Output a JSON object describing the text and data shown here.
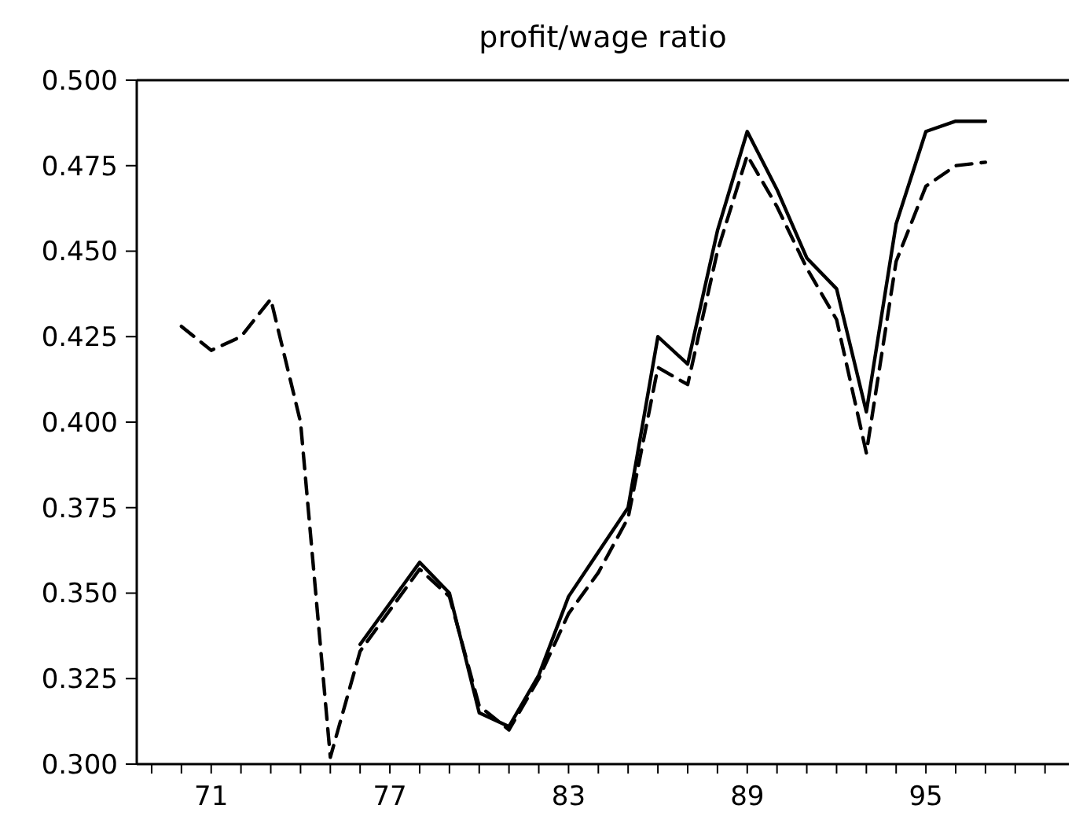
{
  "chart_data": {
    "type": "line",
    "title": "profit/wage ratio",
    "xlim": [
      68.5,
      99.8
    ],
    "xticks": [
      {
        "value": 69,
        "label": null
      },
      {
        "value": 70,
        "label": null
      },
      71,
      {
        "value": 72,
        "label": null
      },
      {
        "value": 73,
        "label": null
      },
      {
        "value": 74,
        "label": null
      },
      {
        "value": 75,
        "label": null
      },
      {
        "value": 76,
        "label": null
      },
      77,
      {
        "value": 78,
        "label": null
      },
      {
        "value": 79,
        "label": null
      },
      {
        "value": 80,
        "label": null
      },
      {
        "value": 81,
        "label": null
      },
      {
        "value": 82,
        "label": null
      },
      83,
      {
        "value": 84,
        "label": null
      },
      {
        "value": 85,
        "label": null
      },
      {
        "value": 86,
        "label": null
      },
      {
        "value": 87,
        "label": null
      },
      {
        "value": 88,
        "label": null
      },
      89,
      {
        "value": 90,
        "label": null
      },
      {
        "value": 91,
        "label": null
      },
      {
        "value": 92,
        "label": null
      },
      {
        "value": 93,
        "label": null
      },
      {
        "value": 94,
        "label": null
      },
      95,
      {
        "value": 96,
        "label": null
      },
      {
        "value": 97,
        "label": null
      },
      {
        "value": 98,
        "label": null
      },
      {
        "value": 99,
        "label": null
      }
    ],
    "ylim": [
      0.3,
      0.5
    ],
    "yticks": [
      {
        "value": 0.3,
        "label": "0.300"
      },
      {
        "value": 0.325,
        "label": "0.325"
      },
      {
        "value": 0.35,
        "label": "0.350"
      },
      {
        "value": 0.375,
        "label": "0.375"
      },
      {
        "value": 0.4,
        "label": "0.400"
      },
      {
        "value": 0.425,
        "label": "0.425"
      },
      {
        "value": 0.45,
        "label": "0.450"
      },
      {
        "value": 0.475,
        "label": "0.475"
      },
      {
        "value": 0.5,
        "label": "0.500"
      }
    ],
    "x": [
      70,
      71,
      72,
      73,
      74,
      75,
      76,
      77,
      78,
      79,
      80,
      81,
      82,
      83,
      84,
      85,
      86,
      87,
      88,
      89,
      90,
      91,
      92,
      93,
      94,
      95,
      96,
      97
    ],
    "grid": false,
    "marker": "none",
    "series": [
      {
        "color": "#000000",
        "line_style": "solid",
        "values": [
          null,
          null,
          null,
          null,
          null,
          null,
          0.335,
          0.347,
          0.359,
          0.35,
          0.315,
          0.311,
          0.326,
          0.349,
          0.362,
          0.375,
          0.425,
          0.417,
          0.456,
          0.485,
          0.468,
          0.448,
          0.439,
          0.403,
          0.458,
          0.485,
          0.488,
          0.488
        ]
      },
      {
        "color": "#000000",
        "line_style": "dashed",
        "values": [
          0.428,
          0.421,
          0.425,
          0.436,
          0.4,
          0.302,
          0.333,
          0.345,
          0.357,
          0.349,
          0.317,
          0.31,
          0.325,
          0.344,
          0.356,
          0.372,
          0.416,
          0.411,
          0.45,
          0.478,
          0.463,
          0.445,
          0.43,
          0.391,
          0.447,
          0.469,
          0.475,
          0.476
        ]
      }
    ]
  }
}
